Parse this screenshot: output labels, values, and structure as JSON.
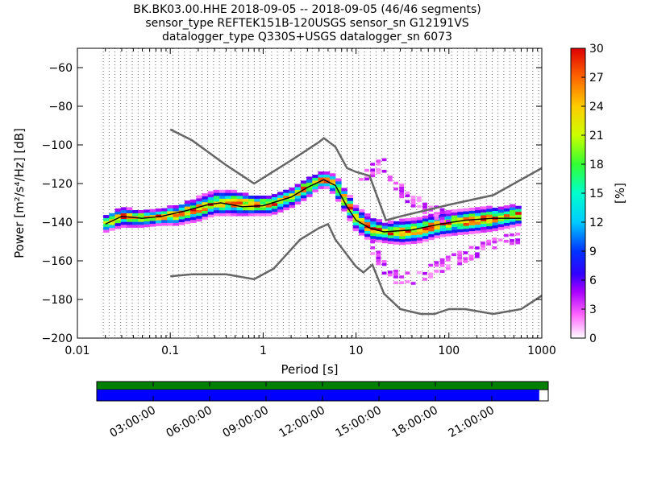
{
  "chart_data": {
    "type": "heatmap",
    "title": {
      "line1": "BK.BK03.00.HHE   2018-09-05 -- 2018-09-05  (46/46 segments)",
      "line2": "sensor_type REFTEK151B-120USGS sensor_sn G12191VS",
      "line3": "datalogger_type Q330S+USGS datalogger_sn 6073"
    },
    "xlabel": "Period [s]",
    "ylabel": "Power [m²/s⁴/Hz] [dB]",
    "x_scale": "log",
    "xlim": [
      0.01,
      1000
    ],
    "ylim": [
      -200,
      -50
    ],
    "x_tick_labels": [
      "0.01",
      "0.1",
      "1",
      "10",
      "100",
      "1000"
    ],
    "y_ticks": [
      -60,
      -80,
      -100,
      -120,
      -140,
      -160,
      -180,
      -200
    ],
    "colorbar": {
      "label": "[%]",
      "ticks": [
        0,
        3,
        6,
        9,
        12,
        15,
        18,
        21,
        24,
        27,
        30
      ],
      "range": [
        0,
        30
      ]
    },
    "grid": "dotted vertical lines at period bins",
    "reference_curves": [
      {
        "name": "upper",
        "points": [
          [
            0.1,
            -92
          ],
          [
            0.17,
            -97.5
          ],
          [
            0.4,
            -110.5
          ],
          [
            0.8,
            -120
          ],
          [
            2,
            -108
          ],
          [
            4,
            -98.5
          ],
          [
            4.5,
            -96.5
          ],
          [
            6,
            -101
          ],
          [
            8,
            -112
          ],
          [
            10,
            -114
          ],
          [
            14,
            -116
          ],
          [
            21,
            -139
          ],
          [
            30,
            -137
          ],
          [
            100,
            -131
          ],
          [
            300,
            -126
          ],
          [
            1000,
            -112
          ]
        ]
      },
      {
        "name": "lower",
        "points": [
          [
            0.1,
            -168
          ],
          [
            0.17,
            -167
          ],
          [
            0.4,
            -167
          ],
          [
            0.8,
            -169.5
          ],
          [
            1.3,
            -164
          ],
          [
            2.5,
            -149
          ],
          [
            4,
            -143
          ],
          [
            5,
            -141
          ],
          [
            6,
            -149
          ],
          [
            10,
            -163
          ],
          [
            12,
            -166
          ],
          [
            15,
            -162
          ],
          [
            20,
            -177
          ],
          [
            30,
            -185
          ],
          [
            50,
            -187.5
          ],
          [
            70,
            -187.5
          ],
          [
            100,
            -185
          ],
          [
            150,
            -185
          ],
          [
            300,
            -187.5
          ],
          [
            600,
            -185
          ],
          [
            1000,
            -178
          ]
        ]
      }
    ],
    "mean_curve": {
      "points": [
        [
          0.02,
          -141
        ],
        [
          0.03,
          -137
        ],
        [
          0.05,
          -138
        ],
        [
          0.08,
          -137
        ],
        [
          0.15,
          -134
        ],
        [
          0.25,
          -131
        ],
        [
          0.35,
          -130
        ],
        [
          0.6,
          -132
        ],
        [
          1,
          -131.5
        ],
        [
          2,
          -127
        ],
        [
          3,
          -122
        ],
        [
          4.5,
          -118
        ],
        [
          6,
          -121
        ],
        [
          8,
          -132
        ],
        [
          10,
          -139
        ],
        [
          14,
          -143
        ],
        [
          20,
          -145
        ],
        [
          40,
          -144
        ],
        [
          80,
          -141
        ],
        [
          150,
          -139
        ],
        [
          300,
          -138
        ],
        [
          600,
          -138
        ]
      ]
    },
    "data_band": {
      "x": [
        0.019,
        0.03,
        0.05,
        0.08,
        0.12,
        0.2,
        0.3,
        0.5,
        0.8,
        1.2,
        2,
        3,
        4,
        5,
        6,
        8,
        10,
        14,
        20,
        30,
        50,
        80,
        120,
        200,
        300,
        600
      ],
      "center": [
        -141,
        -137,
        -138,
        -137,
        -136,
        -133,
        -130,
        -130,
        -131,
        -131,
        -127,
        -122,
        -118,
        -118,
        -121,
        -130,
        -138,
        -143,
        -145,
        -145,
        -144,
        -141,
        -140,
        -139,
        -138,
        -136
      ],
      "spread": [
        4,
        5,
        4,
        4,
        5,
        6,
        6,
        6,
        5,
        5,
        5,
        5,
        4,
        4,
        5,
        6,
        6,
        6,
        5,
        6,
        6,
        6,
        6,
        6,
        6,
        5
      ]
    },
    "outlier_bands": [
      {
        "x": [
          14,
          20,
          30,
          40,
          60,
          100,
          200,
          400,
          600
        ],
        "y": [
          -150,
          -163,
          -170,
          -169,
          -166,
          -161,
          -155,
          -150,
          -149
        ]
      },
      {
        "x": [
          10,
          14,
          20,
          25,
          30,
          40,
          60,
          100
        ],
        "y": [
          -118,
          -114,
          -110,
          -117,
          -123,
          -128,
          -133,
          -138
        ]
      }
    ],
    "availability": {
      "time_labels": [
        "03:00:00",
        "06:00:00",
        "09:00:00",
        "12:00:00",
        "15:00:00",
        "18:00:00",
        "21:00:00"
      ],
      "top_bar_color": "#008000",
      "bottom_bar_color": "#0000ff",
      "coverage_fraction": 0.98
    }
  }
}
